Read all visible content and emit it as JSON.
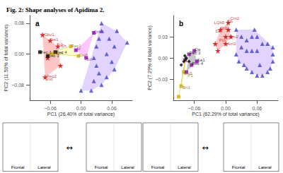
{
  "chart_data": [
    {
      "type": "scatter",
      "title": "Fig. 2: Shape analyses of Apidima 2.",
      "subtitle": "a",
      "xlabel": "PC1 (26.40% of total variance)",
      "ylabel": "PC2 (11.50% of total variance)",
      "xlim": [
        -0.1,
        0.1
      ],
      "ylim": [
        -0.12,
        0.1
      ],
      "xticks": [
        {
          "value": -0.06,
          "label": "−0.06"
        },
        {
          "value": 0,
          "label": "0.00"
        },
        {
          "value": 0.06,
          "label": "0.06"
        }
      ],
      "yticks": [
        {
          "value": -0.08,
          "label": "−0.08"
        },
        {
          "value": 0,
          "label": "0.00"
        },
        {
          "value": 0.08,
          "label": "0.08"
        }
      ],
      "grid": false,
      "series": [
        {
          "type": "polygon",
          "color": "#C0A0FF",
          "values": [
            [
              0.0,
              -0.095
            ],
            [
              0.02,
              -0.095
            ],
            [
              0.04,
              -0.08
            ],
            [
              0.065,
              -0.04
            ],
            [
              0.09,
              0.03
            ],
            [
              0.07,
              0.06
            ],
            [
              0.04,
              0.08
            ]
          ]
        },
        {
          "type": "polygon",
          "color": "#FF8080",
          "values": [
            [
              -0.075,
              0.05
            ],
            [
              -0.07,
              -0.06
            ],
            [
              -0.04,
              -0.03
            ],
            [
              -0.045,
              0.02
            ]
          ]
        },
        {
          "type": "polygon",
          "color": "#FFFF80",
          "values": [
            [
              -0.055,
              0.0
            ],
            [
              -0.005,
              -0.005
            ],
            [
              -0.02,
              0.02
            ]
          ]
        },
        {
          "type": "polygon",
          "color": "#FF80FF",
          "values": [
            [
              0.01,
              -0.01
            ],
            [
              0.025,
              0.055
            ],
            [
              -0.01,
              0.01
            ]
          ]
        },
        {
          "type": "line",
          "color": "#CCCC00",
          "values": [
            [
              -0.065,
              0.0016666666666666668
            ],
            [
              -0.055,
              0.0
            ]
          ]
        },
        {
          "type": "line",
          "color": "#CCCC00",
          "values": [
            [
              -0.065,
              0.0016666666666666668
            ],
            [
              -0.02,
              0.02
            ]
          ]
        },
        {
          "type": "line",
          "color": "#CCCC00",
          "values": [
            [
              -0.065,
              0.0016666666666666668
            ],
            [
              -0.005,
              -0.005
            ]
          ]
        },
        {
          "type": "scatter",
          "marker": "triangle",
          "color": "#4040CC",
          "values": [
            [
              0.04,
              0.08
            ],
            [
              0.07,
              0.06
            ],
            [
              0.055,
              0.04
            ],
            [
              0.065,
              0.02
            ],
            [
              0.05,
              0.0
            ],
            [
              0.06,
              -0.02
            ],
            [
              0.065,
              -0.04
            ],
            [
              0.05,
              -0.06
            ],
            [
              0.04,
              -0.08
            ],
            [
              0.02,
              -0.095
            ],
            [
              0.0,
              -0.095
            ],
            [
              0.025,
              -0.07
            ],
            [
              0.035,
              -0.05
            ],
            [
              0.03,
              -0.03
            ],
            [
              0.025,
              -0.01
            ],
            [
              0.03,
              0.02
            ],
            [
              0.035,
              0.04
            ],
            [
              0.04,
              0.06
            ],
            [
              0.09,
              0.03
            ]
          ]
        },
        {
          "type": "scatter",
          "marker": "star",
          "color": "#CC0000",
          "values": [
            [
              -0.075,
              0.05
            ],
            [
              -0.06,
              0.035
            ],
            [
              -0.045,
              0.02
            ],
            [
              -0.065,
              -0.01
            ],
            [
              -0.07,
              -0.06
            ],
            [
              -0.04,
              -0.03
            ]
          ]
        },
        {
          "type": "scatter",
          "marker": "square",
          "color": "#CCAA00",
          "values": [
            [
              -0.055,
              0.0
            ],
            [
              -0.02,
              0.02
            ],
            [
              -0.005,
              -0.005
            ]
          ]
        },
        {
          "type": "scatter",
          "marker": "square",
          "color": "#8800AA",
          "values": [
            [
              0.025,
              0.055
            ],
            [
              0.01,
              -0.01
            ],
            [
              -0.01,
              0.01
            ]
          ]
        },
        {
          "type": "scatter",
          "marker": "square",
          "color": "#000000",
          "values": [
            [
              -0.08,
              0.005
            ],
            [
              -0.065,
              -0.005
            ],
            [
              -0.05,
              0.005
            ]
          ]
        }
      ],
      "annotations": [
        {
          "text": "Gbv1",
          "x": -0.075,
          "y": 0.05,
          "color": "#CC0000"
        },
        {
          "text": "Sw1",
          "x": -0.063,
          "y": 0.038,
          "color": "#CC0000"
        },
        {
          "text": "Fr1",
          "x": -0.05,
          "y": 0.025,
          "color": "#CC0000"
        },
        {
          "text": "Rec2",
          "x": -0.07,
          "y": -0.058,
          "color": "#CC0000"
        },
        {
          "text": "Snd",
          "x": -0.073,
          "y": -0.065,
          "color": "#CC0000"
        },
        {
          "text": "Ch",
          "x": -0.042,
          "y": 0.022,
          "color": "#CC0000"
        },
        {
          "text": "Qzb5",
          "x": 0.022,
          "y": 0.058,
          "color": "#8800AA"
        },
        {
          "text": "Sd",
          "x": 0.008,
          "y": -0.013,
          "color": "#8800AA"
        },
        {
          "text": "Ar",
          "x": -0.012,
          "y": 0.013,
          "color": "#8800AA"
        },
        {
          "text": "Rec4",
          "x": -0.057,
          "y": 0.002,
          "color": "#806000"
        },
        {
          "text": "Rec1",
          "x": -0.022,
          "y": 0.022,
          "color": "#806000"
        },
        {
          "text": "Gm5",
          "x": -0.007,
          "y": -0.003,
          "color": "#806000"
        },
        {
          "text": "Rec 1",
          "x": -0.082,
          "y": 0.005,
          "color": "#000000"
        },
        {
          "text": "Rec 3",
          "x": -0.067,
          "y": -0.005,
          "color": "#000000"
        },
        {
          "text": "Rec 4",
          "x": -0.052,
          "y": 0.005,
          "color": "#000000"
        }
      ]
    },
    {
      "type": "scatter",
      "subtitle": "b",
      "xlabel": "PC1 (62.29% of total variance)",
      "ylabel": "PC2 (7.29% of total variance)",
      "xlim": [
        -0.1,
        0.1
      ],
      "ylim": [
        -0.06,
        0.06
      ],
      "xticks": [
        {
          "value": -0.06,
          "label": "−0.06"
        },
        {
          "value": 0,
          "label": "0.00"
        },
        {
          "value": 0.06,
          "label": "0.06"
        }
      ],
      "yticks": [
        {
          "value": -0.03,
          "label": "−0.03"
        },
        {
          "value": 0,
          "label": "0.00"
        },
        {
          "value": 0.03,
          "label": "0.03"
        }
      ],
      "grid": false,
      "series": [
        {
          "type": "polygon",
          "color": "#C0A0FF",
          "values": [
            [
              0.02,
              0.005
            ],
            [
              0.025,
              -0.005
            ],
            [
              0.04,
              -0.015
            ],
            [
              0.06,
              -0.025
            ],
            [
              0.07,
              -0.025
            ],
            [
              0.08,
              -0.02
            ],
            [
              0.085,
              -0.015
            ],
            [
              0.09,
              -0.005
            ],
            [
              0.09,
              0.015
            ],
            [
              0.055,
              0.04
            ],
            [
              0.02,
              0.04
            ]
          ]
        },
        {
          "type": "polygon",
          "color": "#FF8080",
          "values": [
            [
              -0.02,
              0.02
            ],
            [
              -0.015,
              0.01
            ],
            [
              0.0,
              0.02
            ],
            [
              0.01,
              0.03
            ],
            [
              0.005,
              0.05
            ],
            [
              -0.01,
              0.04
            ]
          ]
        },
        {
          "type": "polygon",
          "color": "#FFFF80",
          "values": [
            [
              -0.09,
              -0.055
            ],
            [
              -0.08,
              -0.02
            ],
            [
              -0.085,
              -0.04
            ]
          ]
        },
        {
          "type": "polygon",
          "color": "#FF80FF",
          "values": [
            [
              -0.085,
              -0.01
            ],
            [
              -0.07,
              -0.005
            ],
            [
              -0.078,
              0.003
            ]
          ]
        },
        {
          "type": "polygon",
          "color": "#808080",
          "values": [
            [
              -0.075,
              -0.02
            ],
            [
              -0.055,
              -0.005
            ],
            [
              -0.06,
              0.01
            ],
            [
              -0.07,
              0.005
            ]
          ]
        },
        {
          "type": "line",
          "color": "#CCCC00",
          "values": [
            [
              -0.077,
              -0.002
            ],
            [
              -0.08,
              -0.02
            ]
          ]
        },
        {
          "type": "line",
          "color": "#CCCC00",
          "values": [
            [
              -0.077,
              -0.002
            ],
            [
              -0.085,
              -0.04
            ]
          ]
        },
        {
          "type": "line",
          "color": "#CCCC00",
          "values": [
            [
              -0.077,
              -0.002
            ],
            [
              -0.09,
              -0.055
            ]
          ]
        },
        {
          "type": "scatter",
          "marker": "triangle",
          "color": "#4040CC",
          "values": [
            [
              0.02,
              0.04
            ],
            [
              0.03,
              0.03
            ],
            [
              0.04,
              0.025
            ],
            [
              0.05,
              0.03
            ],
            [
              0.06,
              0.03
            ],
            [
              0.07,
              0.02
            ],
            [
              0.08,
              0.02
            ],
            [
              0.09,
              0.015
            ],
            [
              0.09,
              0.005
            ],
            [
              0.09,
              -0.005
            ],
            [
              0.085,
              -0.015
            ],
            [
              0.08,
              -0.02
            ],
            [
              0.07,
              -0.025
            ],
            [
              0.06,
              -0.025
            ],
            [
              0.05,
              -0.02
            ],
            [
              0.04,
              -0.015
            ],
            [
              0.035,
              -0.01
            ],
            [
              0.025,
              -0.005
            ],
            [
              0.02,
              0.005
            ],
            [
              0.03,
              0.015
            ],
            [
              0.04,
              0.01
            ],
            [
              0.05,
              0.01
            ],
            [
              0.06,
              0.01
            ],
            [
              0.065,
              -0.01
            ],
            [
              0.055,
              0.04
            ]
          ]
        },
        {
          "type": "scatter",
          "marker": "star",
          "color": "#CC0000",
          "values": [
            [
              -0.01,
              0.04
            ],
            [
              0.005,
              0.05
            ],
            [
              0.0,
              0.03
            ],
            [
              -0.02,
              0.02
            ],
            [
              -0.015,
              0.01
            ],
            [
              0.01,
              0.03
            ],
            [
              0.0,
              0.02
            ],
            [
              0.005,
              0.04
            ]
          ]
        },
        {
          "type": "scatter",
          "marker": "square",
          "color": "#CCAA00",
          "values": [
            [
              -0.08,
              -0.02
            ],
            [
              -0.085,
              -0.04
            ],
            [
              -0.09,
              -0.055
            ]
          ]
        },
        {
          "type": "scatter",
          "marker": "square",
          "color": "#8800AA",
          "values": [
            [
              -0.07,
              0.005
            ],
            [
              -0.065,
              -0.01
            ],
            [
              -0.075,
              -0.02
            ],
            [
              -0.06,
              0.01
            ],
            [
              -0.055,
              -0.005
            ]
          ]
        },
        {
          "type": "scatter",
          "marker": "diamond",
          "color": "#000000",
          "values": [
            [
              -0.075,
              0.0
            ],
            [
              -0.08,
              -0.005
            ],
            [
              -0.085,
              -0.01
            ],
            [
              -0.07,
              -0.005
            ],
            [
              -0.078,
              0.003
            ]
          ]
        },
        {
          "type": "scatter",
          "marker": "star",
          "color": "#000000",
          "values": [
            [
              -0.077,
              -0.002
            ]
          ]
        }
      ],
      "annotations": [
        {
          "text": "Fr1",
          "x": -0.012,
          "y": 0.042,
          "color": "#CC0000"
        },
        {
          "text": "LQb5",
          "x": -0.025,
          "y": 0.05,
          "color": "#CC0000"
        },
        {
          "text": "Qb",
          "x": 0.0,
          "y": 0.052,
          "color": "#CC0000"
        },
        {
          "text": "Crn2",
          "x": 0.006,
          "y": 0.056,
          "color": "#CC0000"
        },
        {
          "text": "Sm2",
          "x": 0.005,
          "y": 0.03,
          "color": "#CC0000"
        },
        {
          "text": "Am3",
          "x": 0.0,
          "y": 0.02,
          "color": "#CC0000"
        },
        {
          "text": "Da",
          "x": -0.022,
          "y": 0.038,
          "color": "#CC0000"
        },
        {
          "text": "Pm",
          "x": -0.015,
          "y": 0.025,
          "color": "#CC0000"
        },
        {
          "text": "Rec 3",
          "x": -0.072,
          "y": 0.007,
          "color": "#000000"
        },
        {
          "text": "Rec 4",
          "x": -0.067,
          "y": -0.008,
          "color": "#000000"
        },
        {
          "text": "Qa",
          "x": -0.062,
          "y": 0.012,
          "color": "#000000"
        },
        {
          "text": "Sa1",
          "x": -0.057,
          "y": -0.003,
          "color": "#000000"
        },
        {
          "text": "Sm5",
          "x": -0.083,
          "y": -0.022,
          "color": "#806000"
        },
        {
          "text": "P1",
          "x": -0.075,
          "y": -0.025,
          "color": "#806000"
        },
        {
          "text": "Bri1",
          "x": -0.085,
          "y": -0.042,
          "color": "#806000"
        }
      ]
    },
    {
      "type": "diagram",
      "boxes": [
        [
          "Frontal",
          "Lateral"
        ],
        [
          "Frontal",
          "Lateral"
        ],
        [
          "Frontal",
          "Lateral"
        ],
        [
          "Frontal",
          "Lateral"
        ]
      ],
      "annotations": [
        {
          "text": "↔"
        },
        {
          "text": "↔"
        }
      ]
    }
  ]
}
